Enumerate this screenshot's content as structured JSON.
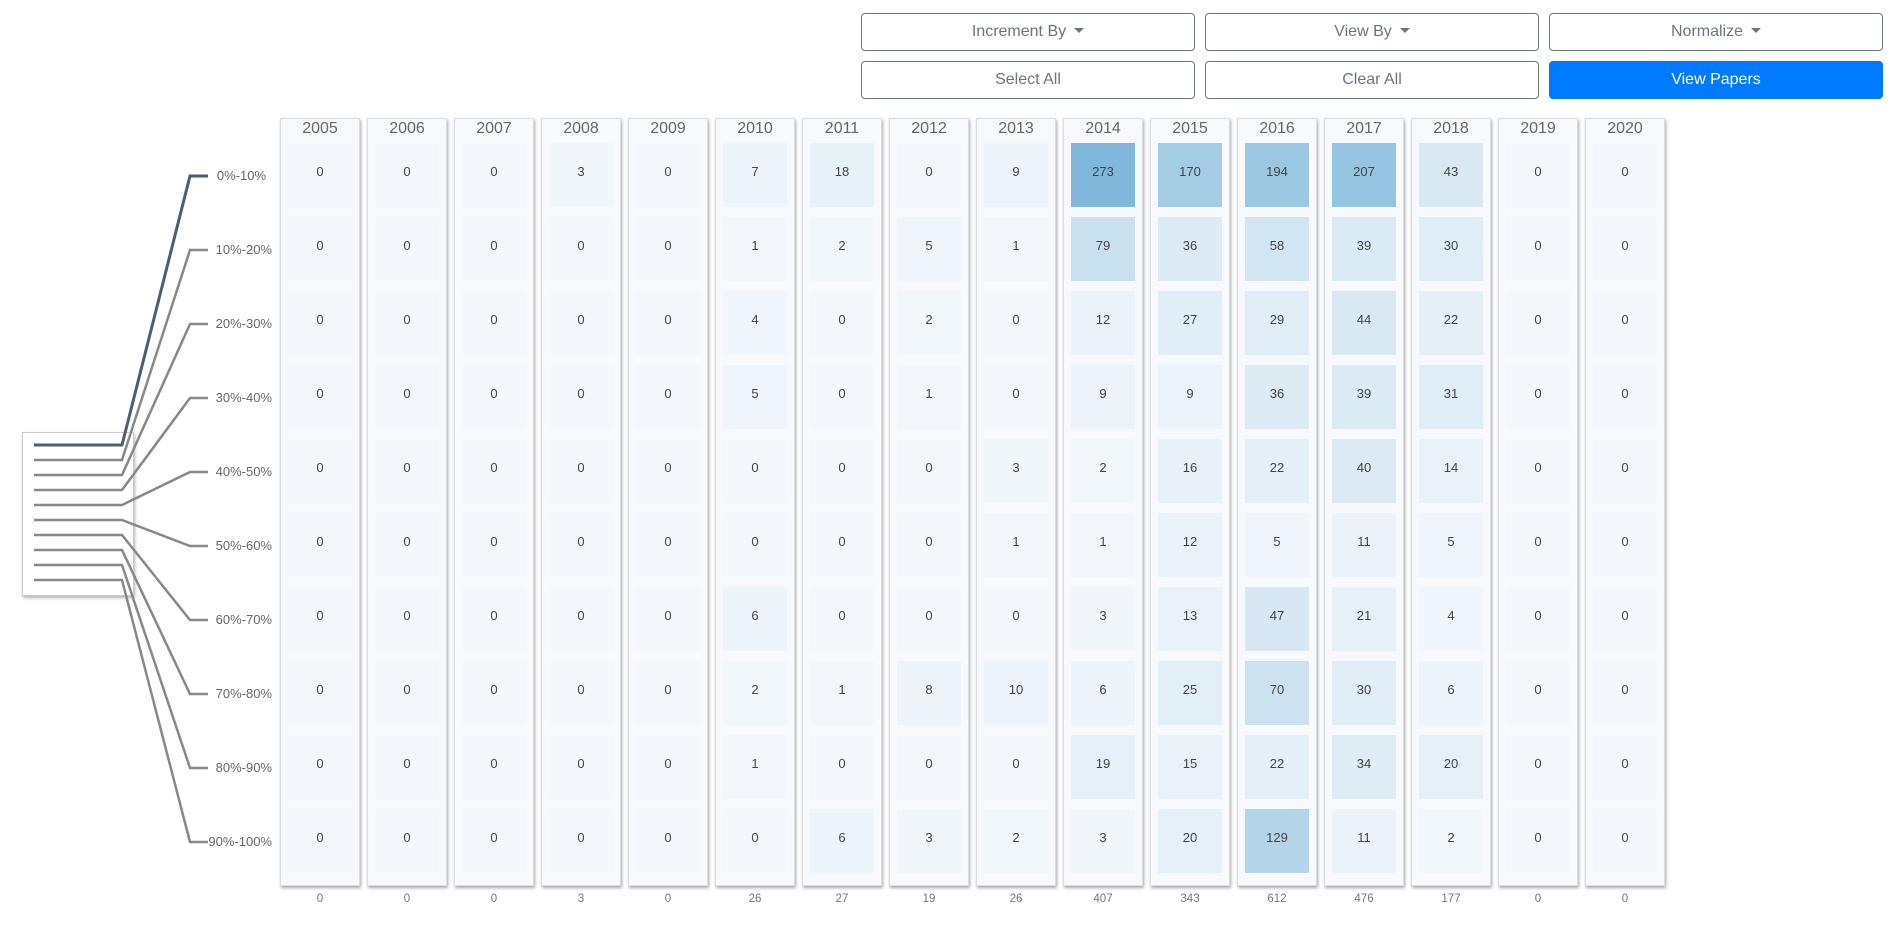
{
  "toolbar": {
    "increment_by": "Increment By",
    "view_by": "View By",
    "normalize": "Normalize",
    "select_all": "Select All",
    "clear_all": "Clear All",
    "view_papers": "View Papers"
  },
  "colors": {
    "primary": "#007bff",
    "heat_low": "#f4f8fc",
    "heat_high": "#7fb8da",
    "tree_selected": "#4a6072",
    "tree_default": "#888888"
  },
  "chart_data": {
    "type": "heatmap",
    "title": "",
    "x": [
      "2005",
      "2006",
      "2007",
      "2008",
      "2009",
      "2010",
      "2011",
      "2012",
      "2013",
      "2014",
      "2015",
      "2016",
      "2017",
      "2018",
      "2019",
      "2020"
    ],
    "y": [
      "0%-10%",
      "10%-20%",
      "20%-30%",
      "30%-40%",
      "40%-50%",
      "50%-60%",
      "60%-70%",
      "70%-80%",
      "80%-90%",
      "90%-100%"
    ],
    "values": [
      [
        0,
        0,
        0,
        3,
        0,
        7,
        18,
        0,
        9,
        273,
        170,
        194,
        207,
        43,
        0,
        0
      ],
      [
        0,
        0,
        0,
        0,
        0,
        1,
        2,
        5,
        1,
        79,
        36,
        58,
        39,
        30,
        0,
        0
      ],
      [
        0,
        0,
        0,
        0,
        0,
        4,
        0,
        2,
        0,
        12,
        27,
        29,
        44,
        22,
        0,
        0
      ],
      [
        0,
        0,
        0,
        0,
        0,
        5,
        0,
        1,
        0,
        9,
        9,
        36,
        39,
        31,
        0,
        0
      ],
      [
        0,
        0,
        0,
        0,
        0,
        0,
        0,
        0,
        3,
        2,
        16,
        22,
        40,
        14,
        0,
        0
      ],
      [
        0,
        0,
        0,
        0,
        0,
        0,
        0,
        0,
        1,
        1,
        12,
        5,
        11,
        5,
        0,
        0
      ],
      [
        0,
        0,
        0,
        0,
        0,
        6,
        0,
        0,
        0,
        3,
        13,
        47,
        21,
        4,
        0,
        0
      ],
      [
        0,
        0,
        0,
        0,
        0,
        2,
        1,
        8,
        10,
        6,
        25,
        70,
        30,
        6,
        0,
        0
      ],
      [
        0,
        0,
        0,
        0,
        0,
        1,
        0,
        0,
        0,
        19,
        15,
        22,
        34,
        20,
        0,
        0
      ],
      [
        0,
        0,
        0,
        0,
        0,
        0,
        6,
        3,
        2,
        3,
        20,
        129,
        11,
        2,
        0,
        0
      ]
    ],
    "totals": [
      0,
      0,
      0,
      3,
      0,
      26,
      27,
      19,
      26,
      407,
      343,
      612,
      476,
      177,
      0,
      0
    ],
    "selected_row": "0%-10%"
  }
}
